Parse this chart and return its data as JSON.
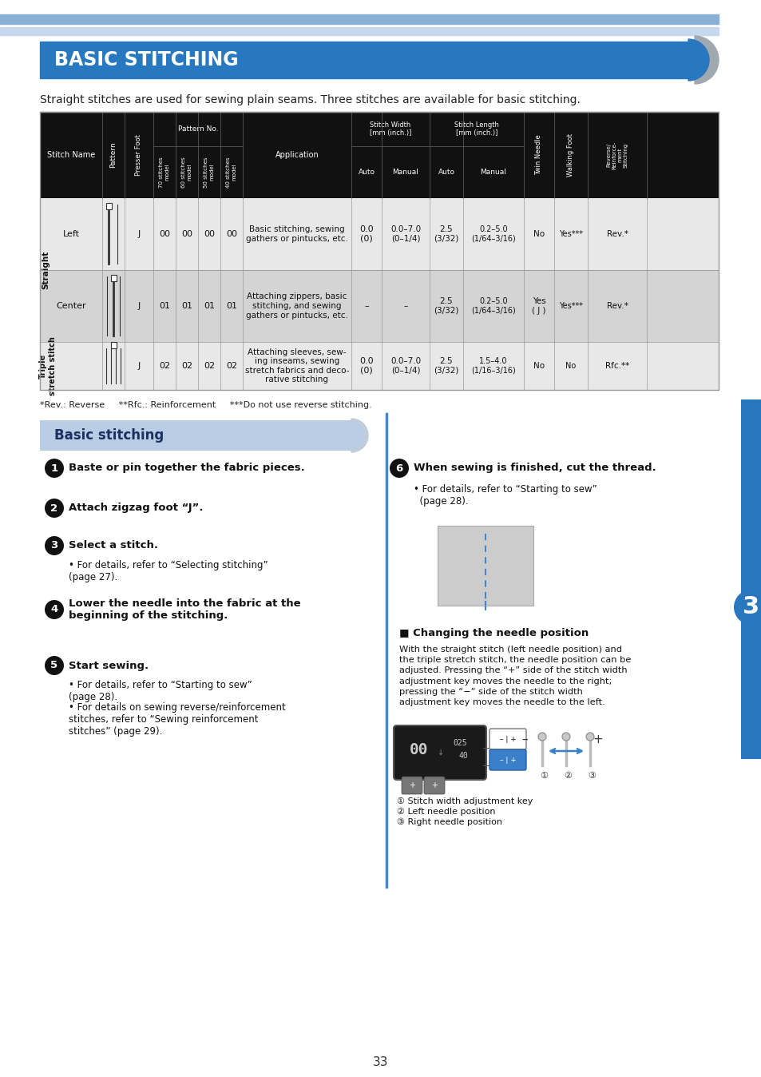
{
  "page_bg": "#ffffff",
  "header_stripe1_color": "#8ab0d8",
  "header_stripe2_color": "#c5d8ee",
  "title_bg": "#2878c0",
  "title_text": "BASIC STITCHING",
  "title_text_color": "#ffffff",
  "subtitle": "Straight stitches are used for sewing plain seams. Three stitches are available for basic stitching.",
  "footnote": "*Rev.: Reverse     **Rfc.: Reinforcement     ***Do not use reverse stitching.",
  "section_bg": "#b8cce4",
  "section_text": "Basic stitching",
  "page_number": "33",
  "chapter_number": "3",
  "changing_needle_title": "Changing the needle position",
  "changing_needle_text": "With the straight stitch (left needle position) and\nthe triple stretch stitch, the needle position can be\nadjusted. Pressing the “+” side of the stitch width\nadjustment key moves the needle to the right;\npressing the “−” side of the stitch width\nadjustment key moves the needle to the left."
}
